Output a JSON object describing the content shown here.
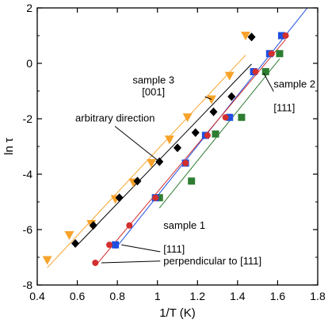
{
  "chart_data": {
    "type": "scatter",
    "xlabel": "1/T  (K)",
    "ylabel": "ln τ",
    "xlim": [
      0.4,
      1.8
    ],
    "ylim": [
      -8,
      2
    ],
    "x_ticks": [
      "0.4",
      "0.6",
      "0.8",
      "1",
      "1.2",
      "1.4",
      "1.6",
      "1.8"
    ],
    "y_ticks": [
      "-8",
      "-6",
      "-4",
      "-2",
      "0",
      "2"
    ],
    "grid": false,
    "series": [
      {
        "name": "sample 3 [001]",
        "marker": "triangle-down",
        "color": "#f7a32b",
        "x": [
          0.45,
          0.56,
          0.67,
          0.79,
          0.88,
          0.97,
          1.06,
          1.15,
          1.27,
          1.36,
          1.44
        ],
        "y": [
          -7.1,
          -6.2,
          -5.8,
          -4.9,
          -4.3,
          -3.6,
          -2.75,
          -1.95,
          -1.3,
          -0.45,
          1.0
        ]
      },
      {
        "name": "arbitrary direction",
        "marker": "diamond",
        "color": "#000000",
        "x": [
          0.59,
          0.68,
          0.81,
          0.9,
          1.01,
          1.1,
          1.19,
          1.28,
          1.37,
          1.47
        ],
        "y": [
          -6.5,
          -5.85,
          -4.85,
          -4.25,
          -3.55,
          -3.05,
          -2.5,
          -1.75,
          -1.2,
          0.95
        ]
      },
      {
        "name": "sample 2 [111]",
        "marker": "square",
        "color": "#2e7d32",
        "x": [
          1.01,
          1.17,
          1.29,
          1.42,
          1.54,
          1.61
        ],
        "y": [
          -4.85,
          -4.25,
          -2.55,
          -1.95,
          -0.3,
          0.35
        ]
      },
      {
        "name": "sample 1 [111]",
        "marker": "square",
        "color": "#1f4fe0",
        "x": [
          0.79,
          0.99,
          1.14,
          1.24,
          1.36,
          1.48,
          1.56,
          1.62
        ],
        "y": [
          -6.55,
          -4.85,
          -3.6,
          -2.6,
          -1.95,
          -0.3,
          0.35,
          1.0
        ]
      },
      {
        "name": "perpendicular to [111]",
        "marker": "circle",
        "color": "#d32f2f",
        "x": [
          0.69,
          0.76,
          0.86,
          0.99,
          1.14,
          1.25,
          1.34,
          1.49,
          1.57,
          1.64
        ],
        "y": [
          -7.2,
          -6.55,
          -5.85,
          -4.85,
          -3.6,
          -2.6,
          -1.95,
          -0.3,
          0.35,
          1.0
        ]
      }
    ],
    "annotations": [
      {
        "lines": [
          "sample 3",
          "[001]"
        ],
        "label_x": 1.0,
        "label_y": -1.15,
        "target_x": 1.27,
        "target_y": -1.3
      },
      {
        "lines": [
          "arbitrary direction"
        ],
        "label_x": 0.59,
        "label_y": -2.1,
        "target_x": 1.01,
        "target_y": -3.55
      },
      {
        "lines": [
          "sample 2",
          "[111]"
        ],
        "label_x": 1.58,
        "label_y": -1.3,
        "target_x": 1.53,
        "target_y": -0.35
      },
      {
        "lines": [
          "sample 1",
          "[111]"
        ],
        "label_x": 1.03,
        "label_y": -6.4,
        "target_x": 0.82,
        "target_y": -6.55
      },
      {
        "lines": [
          "perpendicular to [111]"
        ],
        "label_x": 1.03,
        "label_y": -7.25,
        "target_x": 0.72,
        "target_y": -7.2
      }
    ]
  }
}
